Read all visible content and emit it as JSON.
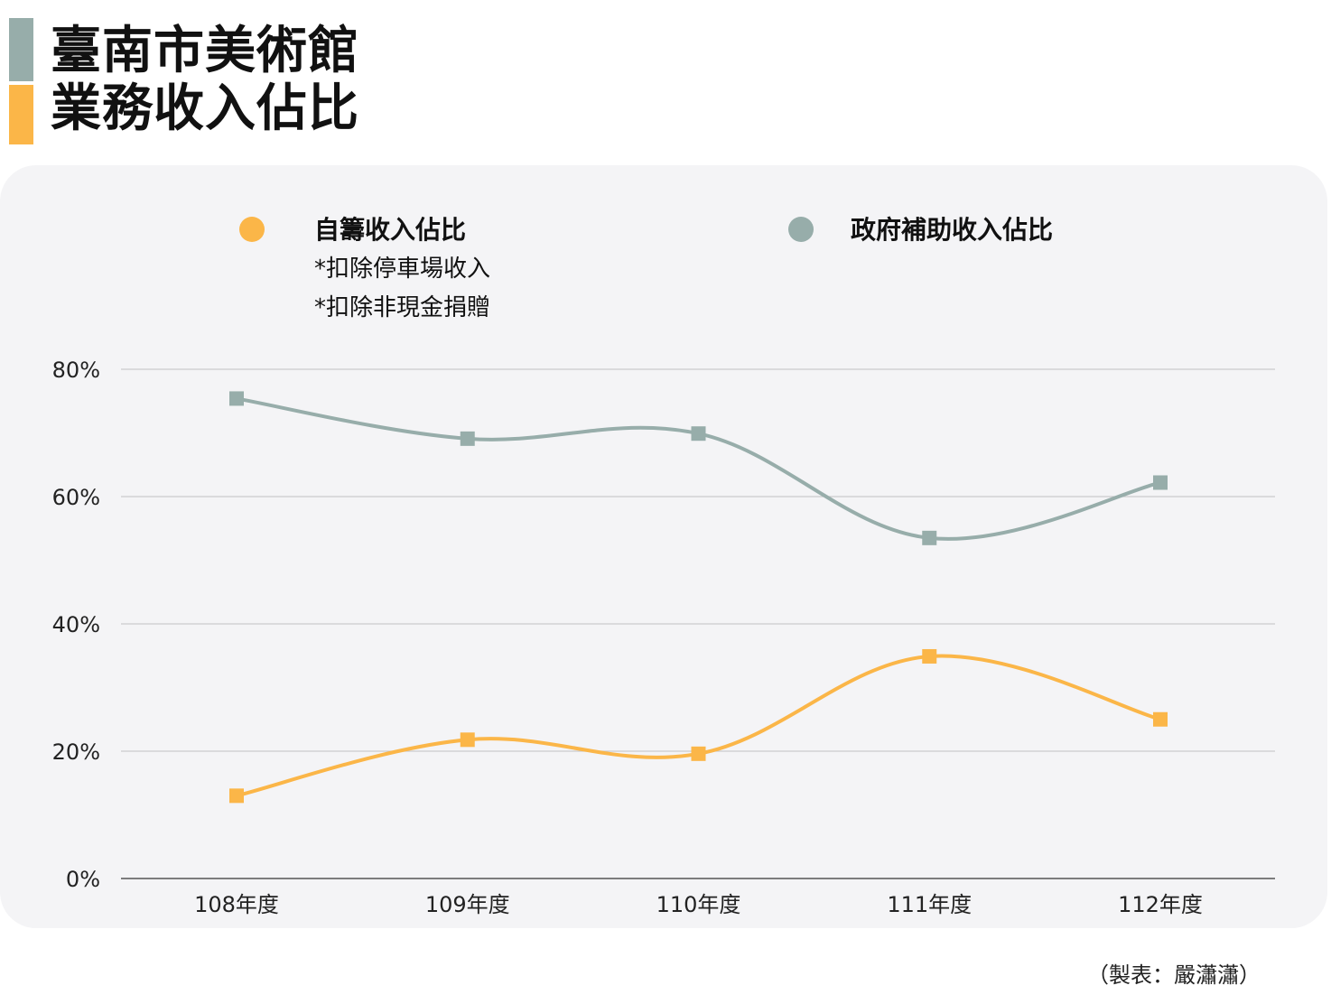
{
  "title": {
    "line1": "臺南市美術館",
    "line2": "業務收入佔比"
  },
  "credit": "（製表：嚴瀟瀟）",
  "chart_data": {
    "type": "line",
    "categories": [
      "108年度",
      "109年度",
      "110年度",
      "111年度",
      "112年度"
    ],
    "series": [
      {
        "name": "自籌收入佔比",
        "notes": [
          "*扣除停車場收入",
          "*扣除非現金捐贈"
        ],
        "color": "#fbb648",
        "values": [
          13,
          21.8,
          19.6,
          34.9,
          25
        ]
      },
      {
        "name": "政府補助收入佔比",
        "notes": [],
        "color": "#97adaa",
        "values": [
          75.4,
          69.1,
          69.9,
          53.5,
          62.2
        ]
      }
    ],
    "y_ticks": [
      "0%",
      "20%",
      "40%",
      "60%",
      "80%"
    ],
    "y_tick_values": [
      0,
      20,
      40,
      60,
      80
    ],
    "ylim": [
      0,
      80
    ],
    "grid": true,
    "legend_position": "top",
    "marker": "square",
    "smooth": true
  }
}
